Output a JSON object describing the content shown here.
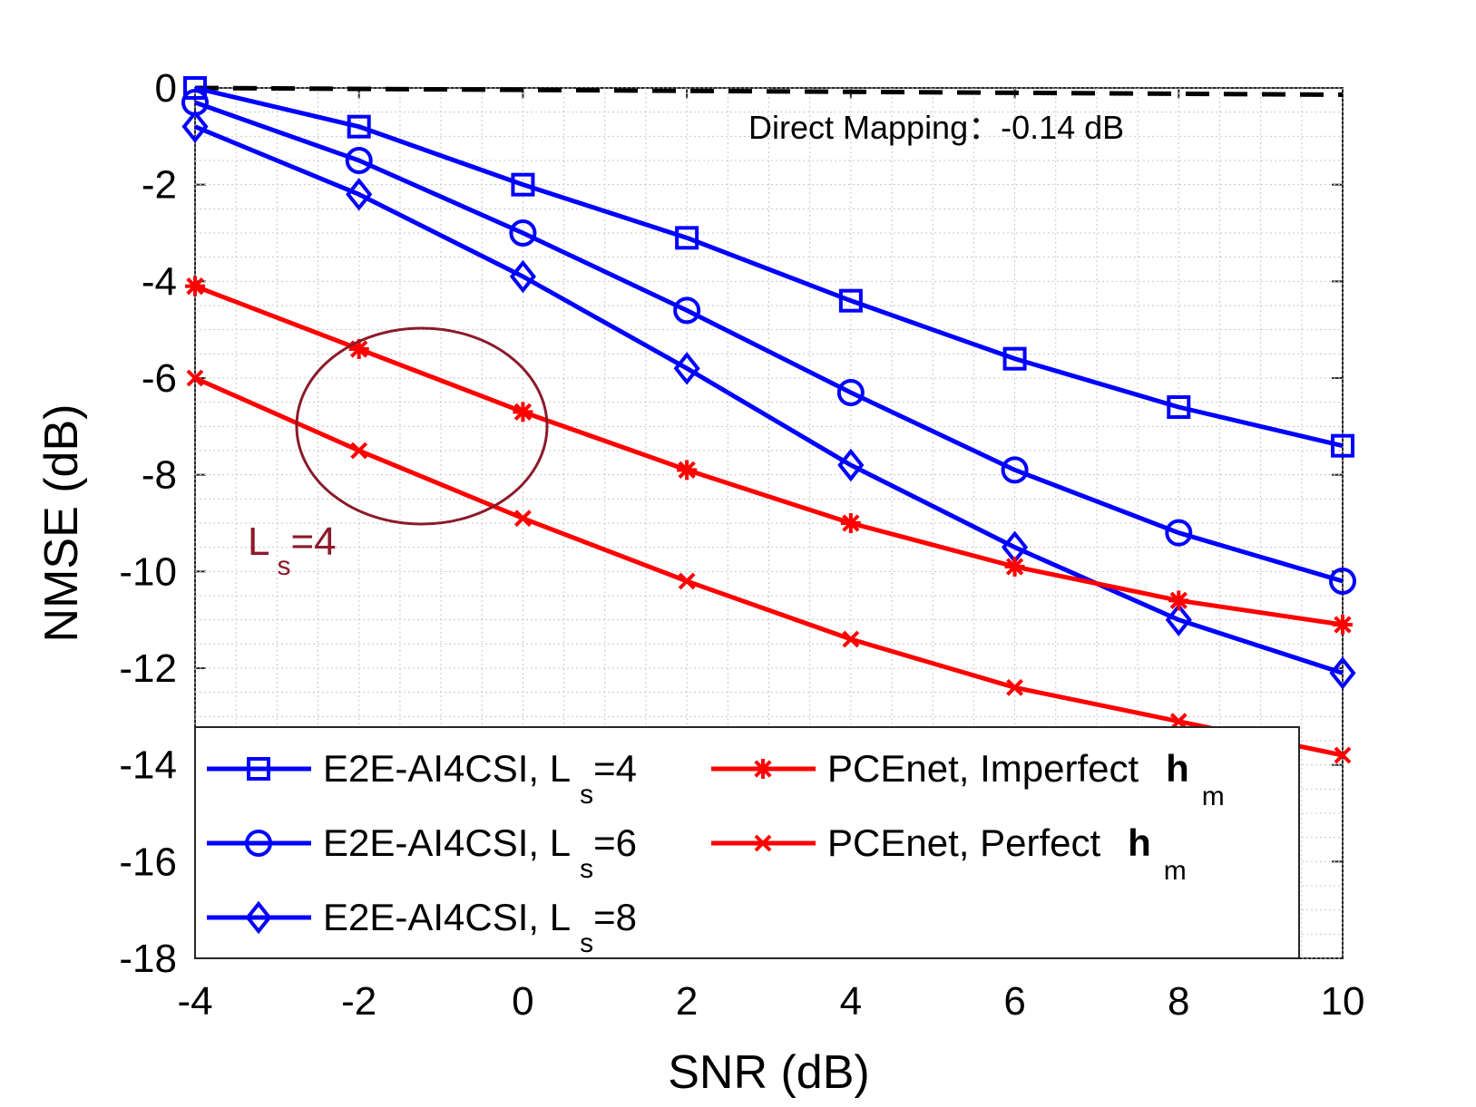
{
  "chart_data": {
    "type": "line",
    "xlabel": "SNR (dB)",
    "ylabel": "NMSE (dB)",
    "xlim": [
      -4,
      10
    ],
    "ylim": [
      -18,
      0
    ],
    "xticks": [
      -4,
      -2,
      0,
      2,
      4,
      6,
      8,
      10
    ],
    "yticks": [
      0,
      -2,
      -4,
      -6,
      -8,
      -10,
      -12,
      -14,
      -16,
      -18
    ],
    "grid": "major and minor, dotted",
    "x": [
      -4,
      -2,
      0,
      2,
      4,
      6,
      8,
      10
    ],
    "series": [
      {
        "name": "E2E-AI4CSI, L_s=4",
        "legend_main": "E2E-AI4CSI, L",
        "legend_sub": "s",
        "legend_tail": "=4",
        "color": "#0000ff",
        "marker": "square",
        "values": [
          0,
          -0.8,
          -2.0,
          -3.1,
          -4.4,
          -5.6,
          -6.6,
          -7.4
        ]
      },
      {
        "name": "E2E-AI4CSI, L_s=6",
        "legend_main": "E2E-AI4CSI, L",
        "legend_sub": "s",
        "legend_tail": "=6",
        "color": "#0000ff",
        "marker": "circle",
        "values": [
          -0.3,
          -1.5,
          -3.0,
          -4.6,
          -6.3,
          -7.9,
          -9.2,
          -10.2
        ]
      },
      {
        "name": "E2E-AI4CSI, L_s=8",
        "legend_main": "E2E-AI4CSI, L",
        "legend_sub": "s",
        "legend_tail": "=8",
        "color": "#0000ff",
        "marker": "diamond",
        "values": [
          -0.8,
          -2.2,
          -3.9,
          -5.8,
          -7.8,
          -9.5,
          -11.0,
          -12.1
        ]
      },
      {
        "name": "PCEnet, Imperfect h_m",
        "legend_main": "PCEnet, Imperfect",
        "legend_bold": "h",
        "legend_sub": "m",
        "color": "#ff0000",
        "marker": "asterisk",
        "values": [
          -4.1,
          -5.4,
          -6.7,
          -7.9,
          -9.0,
          -9.9,
          -10.6,
          -11.1
        ]
      },
      {
        "name": "PCEnet, Perfect h_m",
        "legend_main": "PCEnet, Perfect",
        "legend_bold": "h",
        "legend_sub": "m",
        "color": "#ff0000",
        "marker": "x",
        "values": [
          -6.0,
          -7.5,
          -8.9,
          -10.2,
          -11.4,
          -12.4,
          -13.1,
          -13.8
        ]
      }
    ],
    "reference_line": {
      "name": "Direct Mapping",
      "value": -0.14,
      "style": "dashed",
      "color": "#000000"
    },
    "annotations": {
      "direct_mapping": "Direct Mapping：-0.14 dB",
      "ellipse_label_main": "L",
      "ellipse_label_sub": "s",
      "ellipse_label_tail": "=4",
      "ellipse_color": "#8b1a2a"
    },
    "legend_position": "lower-left"
  }
}
